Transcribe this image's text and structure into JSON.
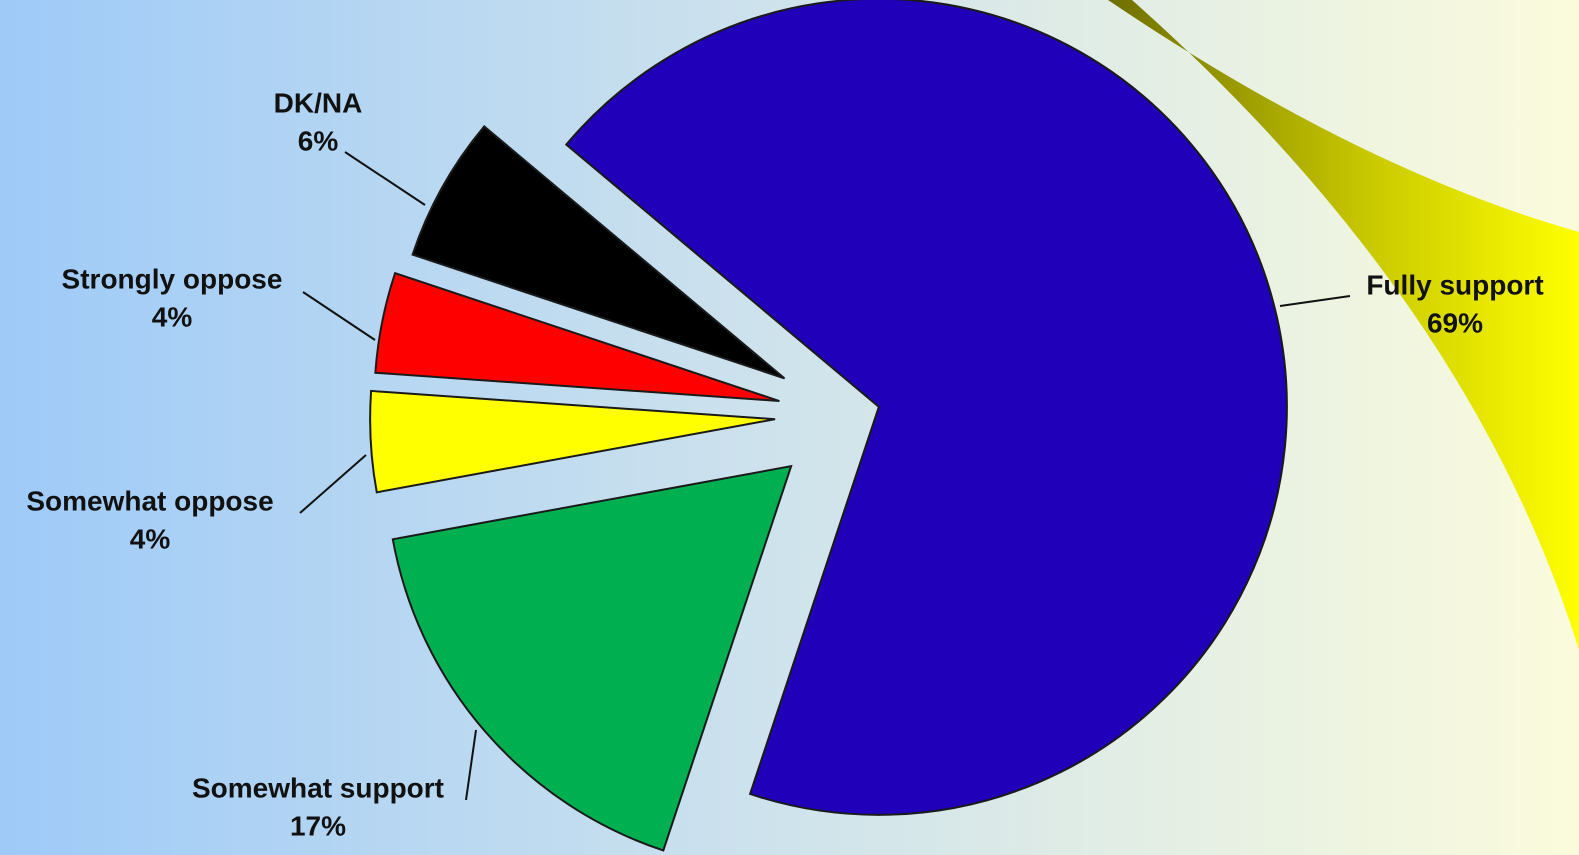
{
  "chart_data": {
    "type": "pie",
    "categories": [
      "Fully support",
      "Somewhat support",
      "Somewhat oppose",
      "Strongly oppose",
      "DK/NA"
    ],
    "values": [
      69,
      17,
      4,
      4,
      6
    ],
    "value_labels": [
      "69%",
      "17%",
      "4%",
      "4%",
      "6%"
    ],
    "colors": [
      "#2000b8",
      "#00b050",
      "#ffff00",
      "#ff0000",
      "#000000"
    ]
  }
}
